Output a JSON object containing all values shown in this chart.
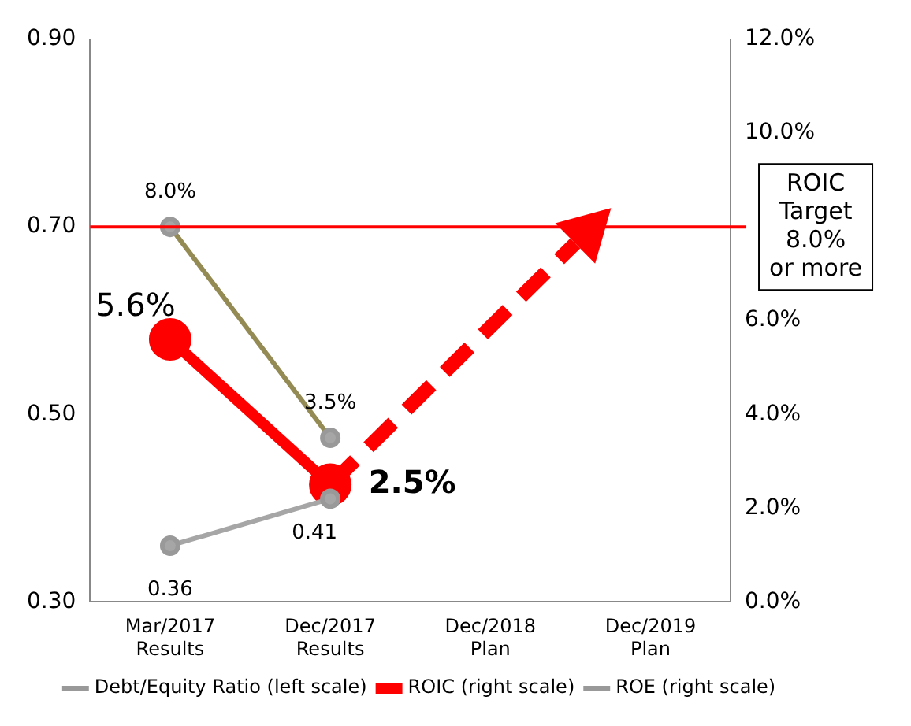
{
  "chart_data": {
    "type": "line",
    "categories": [
      "Mar/2017\nResults",
      "Dec/2017\nResults",
      "Dec/2018\nPlan",
      "Dec/2019\nPlan"
    ],
    "series": [
      {
        "name": "Debt/Equity Ratio (left scale)",
        "color": "#a6a6a6",
        "values": [
          0.36,
          0.41,
          null,
          null
        ],
        "value_labels": [
          "0.36",
          "0.41",
          null,
          null
        ]
      },
      {
        "name": "ROIC (right scale)",
        "color": "#ff0000",
        "axis": "y2",
        "values": [
          5.6,
          2.5,
          null,
          null
        ],
        "value_labels": [
          "5.6%",
          "2.5%",
          null,
          null
        ]
      },
      {
        "name": "ROE (right scale)",
        "color": "#948a54",
        "axis": "y2",
        "values": [
          8.0,
          3.5,
          null,
          null
        ],
        "value_labels": [
          "8.0%",
          "3.5%",
          null,
          null
        ]
      }
    ],
    "ylim": [
      0.3,
      0.9
    ],
    "yticks": [
      {
        "value": 0.3,
        "label": "0.30"
      },
      {
        "value": 0.5,
        "label": "0.50"
      },
      {
        "value": 0.7,
        "label": "0.70"
      },
      {
        "value": 0.9,
        "label": "0.90"
      }
    ],
    "y2lim": [
      0,
      12
    ],
    "y2ticks": [
      {
        "value": 0,
        "label": "0.0%"
      },
      {
        "value": 2,
        "label": "2.0%"
      },
      {
        "value": 4,
        "label": "4.0%"
      },
      {
        "value": 6,
        "label": "6.0%"
      },
      {
        "value": 8,
        "label": null
      },
      {
        "value": 10,
        "label": "10.0%"
      },
      {
        "value": 12,
        "label": "12.0%"
      }
    ],
    "ref_lines": [
      {
        "axis": "y",
        "value": 0.7,
        "color": "#ff0000"
      }
    ],
    "annotations": [
      "ROIC\nTarget\n8.0%\nor more"
    ],
    "legend": "bottom",
    "marker": "circle",
    "grid": false
  }
}
